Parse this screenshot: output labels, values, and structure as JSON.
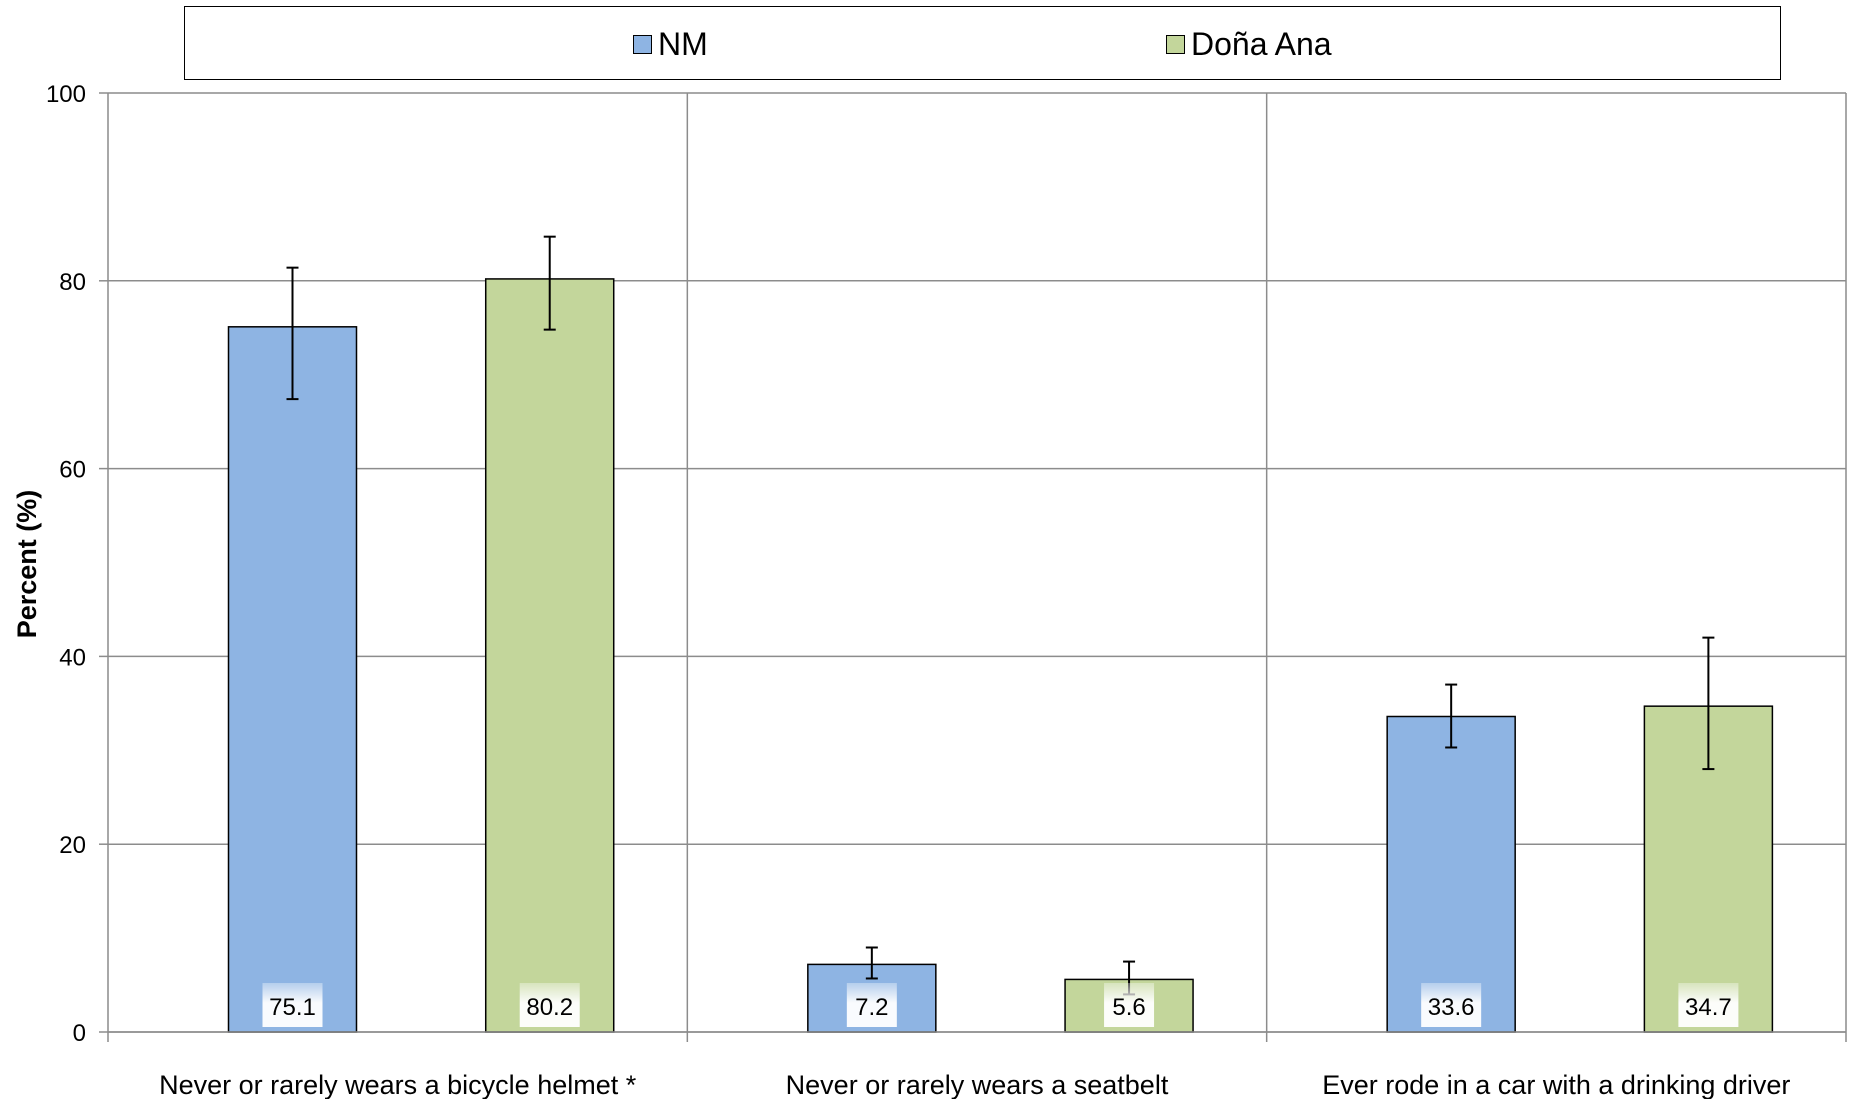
{
  "chart_data": {
    "type": "bar",
    "categories": [
      "Never or rarely wears a bicycle helmet *",
      "Never or rarely wears a seatbelt",
      "Ever rode in a car with a drinking driver"
    ],
    "series": [
      {
        "name": "NM",
        "color": "#8EB4E3",
        "values": [
          75.1,
          7.2,
          33.6
        ],
        "error_low": [
          67.4,
          5.7,
          30.3
        ],
        "error_high": [
          81.4,
          9.0,
          37.0
        ],
        "labels": [
          "75.1",
          "7.2",
          "33.6"
        ]
      },
      {
        "name": "Doña Ana",
        "color": "#C3D69B",
        "values": [
          80.2,
          5.6,
          34.7
        ],
        "error_low": [
          74.8,
          4.0,
          28.0
        ],
        "error_high": [
          84.7,
          7.5,
          42.0
        ],
        "labels": [
          "80.2",
          "5.6",
          "34.7"
        ]
      }
    ],
    "ylabel": "Percent (%)",
    "xlabel": "",
    "ylim": [
      0,
      100
    ],
    "yticks": [
      "0",
      "20",
      "40",
      "60",
      "80",
      "100"
    ],
    "grid": true,
    "legend_position": "top"
  }
}
